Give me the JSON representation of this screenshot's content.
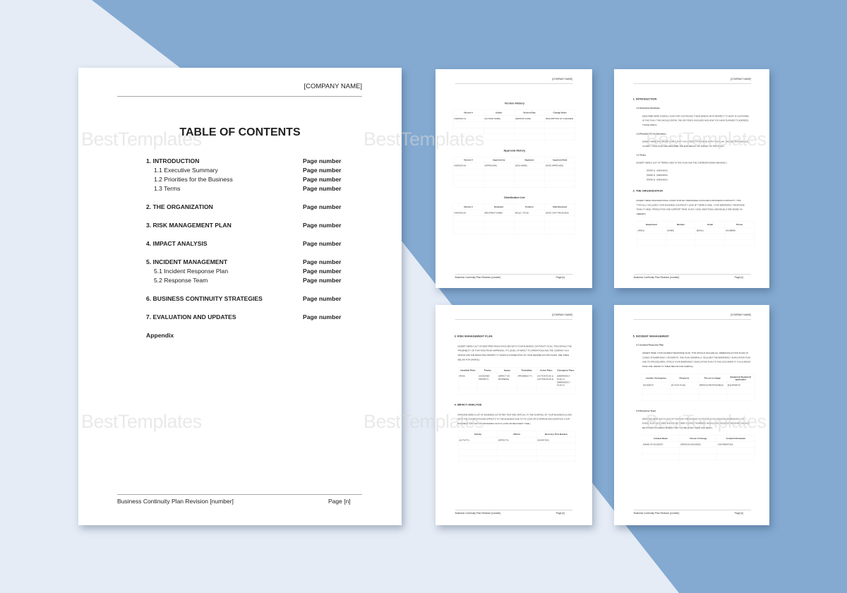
{
  "colors": {
    "background_light": "#e5ecf6",
    "background_band": "#84aad2",
    "page": "#ffffff"
  },
  "watermark": "BestTemplates",
  "common": {
    "company": "[COMPANY NAME]",
    "footer": "Business Continuity Plan Revision [number]",
    "page": "Page [n]"
  },
  "toc": {
    "title": "TABLE OF CONTENTS",
    "entries": [
      {
        "label": "1. INTRODUCTION",
        "page": "Page number",
        "level": 1
      },
      {
        "label": "1.1 Executive Summary",
        "page": "Page number",
        "level": 2
      },
      {
        "label": "1.2 Priorities for the Business",
        "page": "Page number",
        "level": 2
      },
      {
        "label": "1.3 Terms",
        "page": "Page number",
        "level": 2
      },
      {
        "label": "2. THE ORGANIZATION",
        "page": "Page number",
        "level": 1
      },
      {
        "label": "3. RISK MANAGEMENT PLAN",
        "page": "Page number",
        "level": 1
      },
      {
        "label": "4. IMPACT ANALYSIS",
        "page": "Page number",
        "level": 1
      },
      {
        "label": "5. INCIDENT MANAGEMENT",
        "page": "Page number",
        "level": 1
      },
      {
        "label": "5.1 Incident Response Plan",
        "page": "Page number",
        "level": 2
      },
      {
        "label": "5.2 Response Team",
        "page": "Page number",
        "level": 2
      },
      {
        "label": "6. BUSINESS CONTINUITY STRATEGIES",
        "page": "Page number",
        "level": 1
      },
      {
        "label": "7. EVALUATION AND UPDATES",
        "page": "Page number",
        "level": 1
      },
      {
        "label": "Appendix",
        "page": "",
        "level": 1
      }
    ]
  },
  "small_pages": [
    {
      "blocks": [
        {
          "type": "title",
          "text": "Version History"
        },
        {
          "type": "table",
          "headers": [
            "Version #",
            "Author",
            "Version Date",
            "Change Notes"
          ],
          "rows": [
            [
              "[VERSION 3]",
              "[AUTHOR NAME]",
              "[VERSION DATE]",
              "DESCRIPTION OF CHANGES]"
            ],
            [
              "",
              "",
              "",
              ""
            ],
            [
              "",
              "",
              "",
              ""
            ],
            [
              "",
              "",
              "",
              ""
            ]
          ]
        },
        {
          "type": "title",
          "text": "Approval History"
        },
        {
          "type": "table",
          "headers": [
            "Version #",
            "Approved by",
            "Signature",
            "Approved Date"
          ],
          "rows": [
            [
              "[VERSION #]",
              "[APPROVER]",
              "[SIGN HERE]",
              "[DATE APPROVED]"
            ],
            [
              "",
              "",
              "",
              ""
            ],
            [
              "",
              "",
              "",
              ""
            ],
            [
              "",
              "",
              "",
              ""
            ]
          ]
        },
        {
          "type": "title",
          "text": "Distribution List"
        },
        {
          "type": "table",
          "headers": [
            "Version #",
            "Recipient",
            "Position",
            "Date Received"
          ],
          "rows": [
            [
              "[VERSION #]",
              "[RECIPIENT NAME]",
              "[ROLE / TITLE]",
              "[DATE COPY RECEIVED]"
            ],
            [
              "",
              "",
              "",
              ""
            ],
            [
              "",
              "",
              "",
              ""
            ],
            [
              "",
              "",
              "",
              ""
            ]
          ]
        }
      ]
    },
    {
      "blocks": [
        {
          "type": "h1",
          "text": "1. INTRODUCTION"
        },
        {
          "type": "h2",
          "text": "1.1 Executive Summary"
        },
        {
          "type": "p",
          "text": "[Describe here overall plan for continuing the business with respect to what is contained in this plan. This should entail the key risks involved and how you have planned to address those risks.]"
        },
        {
          "type": "h2",
          "text": "1.2 Priorities for the Business"
        },
        {
          "type": "p",
          "text": "[Insert here the major goals that you intend to achieve with this plan. This section should clarify your plan and describe the end result or target of this plan.]"
        },
        {
          "type": "h2",
          "text": "1.3 Terms"
        },
        {
          "type": "p",
          "text": "[Insert here a list of terms used in this plan and the corresponding meaning.]",
          "indent": "ind1"
        },
        {
          "type": "list",
          "items": [
            "[TERM 1] - [MEANING]",
            "[TERM 2] - [MEANING]",
            "[TERM 3] - [MEANING]"
          ]
        },
        {
          "type": "h1",
          "text": "2. THE ORGANIZATION"
        },
        {
          "type": "p",
          "text": "[Insert here organizational chart for key personnel involved in business continuity. This typically includes your business continuity lead (if there is one), your emergency response team, IT head, production and support team. In any case, additional individuals are added as needed.]",
          "indent": "ind1"
        },
        {
          "type": "table",
          "cls": "ind",
          "headers": [
            "Department",
            "Member",
            "Email",
            "Phone"
          ],
          "rows": [
            [
              "[AREA]",
              "[NAME]",
              "[EMAIL]",
              "[NUMBER]"
            ],
            [
              "",
              "",
              "",
              ""
            ],
            [
              "",
              "",
              "",
              ""
            ]
          ]
        }
      ]
    },
    {
      "blocks": [
        {
          "type": "h1",
          "text": "3. RISK MANAGEMENT PLAN"
        },
        {
          "type": "p",
          "text": "[Insert here a list of identified risks involved with your business continuity plan. This details the probability of that risk from happening, it's level of impact to operations and the company as a whole and the resulting priority it takes in connection to your defined action plans. See table below for sample.]",
          "indent": "ind1"
        },
        {
          "type": "table",
          "cls": "ind",
          "headers": [
            "Identified Risks",
            "Priority",
            "Impact",
            "Probability",
            "Action Plans",
            "Emergency Plans"
          ],
          "rows": [
            [
              "[RISK]",
              "[ASSIGNED PRIORITY]",
              "[IMPACT ON BUSINESS]",
              "[PROBABILITY]",
              "[ACTION PLAN 1] [ACTION PLAN 2]",
              "[EMERGENCY PLAN 1] [EMERGENCY PLAN 2]"
            ],
            [
              "",
              "",
              "",
              "",
              "",
              ""
            ]
          ]
        },
        {
          "type": "h1",
          "text": "4. IMPACT ANALYSIS"
        },
        {
          "type": "p",
          "text": "[Provide here a list of business activities that are critical to the survival of your business along with the corresponding effects to the business due to its loss or stoppage and duration your business can last withstanding such a loss or recovery time.]",
          "indent": "ind1"
        },
        {
          "type": "table",
          "cls": "ind",
          "headers": [
            "Activity",
            "Effects",
            "Recovery Time Needed"
          ],
          "rows": [
            [
              "[ACTIVITY]",
              "[EFFECTS]",
              "[DURATION]"
            ],
            [
              "",
              "",
              ""
            ],
            [
              "",
              "",
              ""
            ],
            [
              "",
              "",
              ""
            ]
          ]
        }
      ]
    },
    {
      "blocks": [
        {
          "type": "h1",
          "text": "5. INCIDENT MANAGEMENT"
        },
        {
          "type": "h2",
          "text": "5.1 Incident Response Plan"
        },
        {
          "type": "p",
          "text": "[Insert here your incident response plan. This should include all immediate action plans in cases of emergency or events. This plan generally includes the emergency evacuation plan and its procedures. Attach your emergency evacuation plan to this document if you already have one. Refer to table below for sample.]"
        },
        {
          "type": "table",
          "cls": "ind2",
          "headers": [
            "Incident / Emergency",
            "Response",
            "Person in charge",
            "Equipment Needed (if applicable)"
          ],
          "rows": [
            [
              "[INCIDENT]",
              "[ACTION PLAN]",
              "[PERSON RESPONSIBLE]",
              "[EQUIPMENT]"
            ],
            [
              "",
              "",
              "",
              ""
            ],
            [
              "",
              "",
              "",
              ""
            ]
          ]
        },
        {
          "type": "h2",
          "text": "5.2 Response Team"
        },
        {
          "type": "p",
          "text": "[Provide here with a list of your key personnel to attend to an assigned emergency or event. Also included should be their contact numbers should any incident arise and should be posted on areas where they can be easily seen and read.]"
        },
        {
          "type": "table",
          "cls": "ind2",
          "headers": [
            "Incident Name",
            "Person In Charge",
            "Contact Information"
          ],
          "rows": [
            [
              "[NAME OF INCIDENT]",
              "[PERSON ASSIGNED]",
              "[INFORMATION]"
            ],
            [
              "",
              "",
              ""
            ],
            [
              "",
              "",
              ""
            ]
          ]
        }
      ]
    }
  ]
}
